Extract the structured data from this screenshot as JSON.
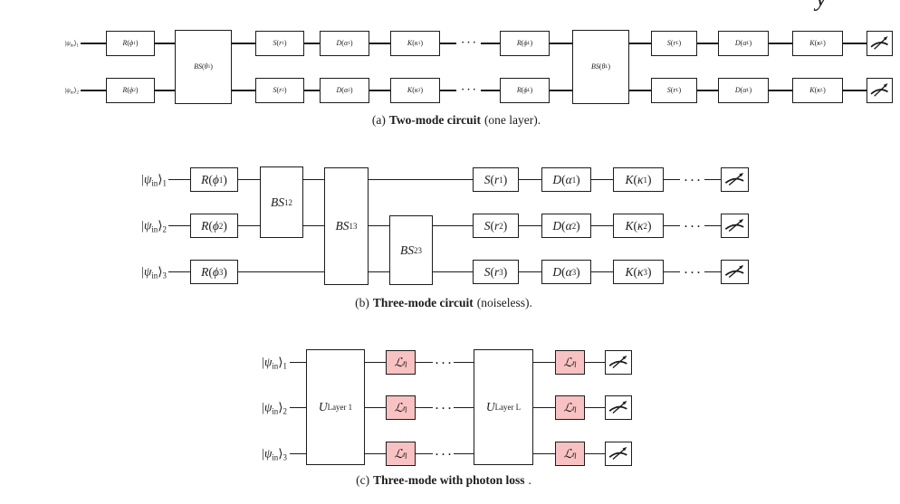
{
  "figure": {
    "corner_fragment": "y",
    "colors": {
      "line": "#1c1c1c",
      "background": "#ffffff",
      "gate_fill": "#ffffff",
      "loss_fill": "#f9c2c2"
    },
    "circuits": [
      {
        "id": "a",
        "caption": {
          "num": "(a)",
          "bold": "Two-mode circuit",
          "rest": "(one layer)."
        },
        "dots": "···",
        "inputs": [
          "|ψ_{in}⟩_{1}",
          "|ψ_{in}⟩_{2}"
        ],
        "elements": [
          {
            "kind": "gate",
            "name": "rotation-gate-phi-1",
            "label": "R(ϕ_{1})"
          },
          {
            "kind": "gate",
            "name": "rotation-gate-phi-2",
            "label": "R(ϕ_{2})"
          },
          {
            "kind": "gate",
            "name": "beamsplitter-gate-theta-1",
            "label": "BS(θ_{1})"
          },
          {
            "kind": "gate",
            "name": "squeezing-gate-r-1",
            "label": "S(r_{1})"
          },
          {
            "kind": "gate",
            "name": "squeezing-gate-r-2",
            "label": "S(r_{2})"
          },
          {
            "kind": "gate",
            "name": "displacement-gate-alpha-1",
            "label": "D(α_{1})"
          },
          {
            "kind": "gate",
            "name": "displacement-gate-alpha-2",
            "label": "D(α_{2})"
          },
          {
            "kind": "gate",
            "name": "kerr-gate-kappa-1",
            "label": "K(κ_{1})"
          },
          {
            "kind": "gate",
            "name": "kerr-gate-kappa-2",
            "label": "K(κ_{2})"
          },
          {
            "kind": "dots",
            "name": "wire-ellipsis-1"
          },
          {
            "kind": "dots",
            "name": "wire-ellipsis-2"
          },
          {
            "kind": "gate",
            "name": "rotation-gate-phi-L-wire-1",
            "label": "R(ϕ_{L})"
          },
          {
            "kind": "gate",
            "name": "rotation-gate-phi-L-wire-2",
            "label": "R(ϕ_{L})"
          },
          {
            "kind": "gate",
            "name": "beamsplitter-gate-theta-L",
            "label": "BS(θ_{L})"
          },
          {
            "kind": "gate",
            "name": "squeezing-gate-r-L-wire-1",
            "label": "S(r_{L})"
          },
          {
            "kind": "gate",
            "name": "squeezing-gate-r-L-wire-2",
            "label": "S(r_{L})"
          },
          {
            "kind": "gate",
            "name": "displacement-gate-alpha-L-wire-1",
            "label": "D(α_{L})"
          },
          {
            "kind": "gate",
            "name": "displacement-gate-alpha-L-wire-2",
            "label": "D(α_{L})"
          },
          {
            "kind": "gate",
            "name": "kerr-gate-kappa-L-wire-1",
            "label": "K(κ_{L})"
          },
          {
            "kind": "gate",
            "name": "kerr-gate-kappa-L-wire-2",
            "label": "K(κ_{L})"
          },
          {
            "kind": "meter",
            "name": "measurement-meter-wire-1"
          },
          {
            "kind": "meter",
            "name": "measurement-meter-wire-2"
          }
        ]
      },
      {
        "id": "b",
        "caption": {
          "num": "(b)",
          "bold": "Three-mode circuit",
          "rest": "(noiseless)."
        },
        "dots": "···",
        "inputs": [
          "|ψ_{in}⟩_{1}",
          "|ψ_{in}⟩_{2}",
          "|ψ_{in}⟩_{3}"
        ],
        "elements": [
          {
            "kind": "gate",
            "name": "rotation-gate-phi-1",
            "label": "R(ϕ_{1})"
          },
          {
            "kind": "gate",
            "name": "rotation-gate-phi-2",
            "label": "R(ϕ_{2})"
          },
          {
            "kind": "gate",
            "name": "rotation-gate-phi-3",
            "label": "R(ϕ_{3})"
          },
          {
            "kind": "gate",
            "name": "beamsplitter-gate-12",
            "label": "BS_{12}"
          },
          {
            "kind": "gate",
            "name": "beamsplitter-gate-13",
            "label": "BS_{13}"
          },
          {
            "kind": "gate",
            "name": "beamsplitter-gate-23",
            "label": "BS_{23}"
          },
          {
            "kind": "gate",
            "name": "squeezing-gate-r-1",
            "label": "S(r_{1})"
          },
          {
            "kind": "gate",
            "name": "squeezing-gate-r-2",
            "label": "S(r_{2})"
          },
          {
            "kind": "gate",
            "name": "squeezing-gate-r-3",
            "label": "S(r_{3})"
          },
          {
            "kind": "gate",
            "name": "displacement-gate-alpha-1",
            "label": "D(α_{1})"
          },
          {
            "kind": "gate",
            "name": "displacement-gate-alpha-2",
            "label": "D(α_{2})"
          },
          {
            "kind": "gate",
            "name": "displacement-gate-alpha-3",
            "label": "D(α_{3})"
          },
          {
            "kind": "gate",
            "name": "kerr-gate-kappa-1",
            "label": "K(κ_{1})"
          },
          {
            "kind": "gate",
            "name": "kerr-gate-kappa-2",
            "label": "K(κ_{2})"
          },
          {
            "kind": "gate",
            "name": "kerr-gate-kappa-3",
            "label": "K(κ_{3})"
          },
          {
            "kind": "dots",
            "name": "wire-ellipsis-1"
          },
          {
            "kind": "dots",
            "name": "wire-ellipsis-2"
          },
          {
            "kind": "dots",
            "name": "wire-ellipsis-3"
          },
          {
            "kind": "meter",
            "name": "measurement-meter-wire-1"
          },
          {
            "kind": "meter",
            "name": "measurement-meter-wire-2"
          },
          {
            "kind": "meter",
            "name": "measurement-meter-wire-3"
          }
        ]
      },
      {
        "id": "c",
        "caption": {
          "num": "(c)",
          "bold": "Three-mode with photon loss",
          "rest": "."
        },
        "dots": "···",
        "inputs": [
          "|ψ_{in}⟩_{1}",
          "|ψ_{in}⟩_{2}",
          "|ψ_{in}⟩_{3}"
        ],
        "elements": [
          {
            "kind": "gate",
            "name": "unitary-layer-1",
            "label": "U_{Layer 1}"
          },
          {
            "kind": "loss",
            "name": "loss-gate-eta-wire-1",
            "label": "ℒ_{η}"
          },
          {
            "kind": "loss",
            "name": "loss-gate-eta-wire-2",
            "label": "ℒ_{η}"
          },
          {
            "kind": "loss",
            "name": "loss-gate-eta-wire-3",
            "label": "ℒ_{η}"
          },
          {
            "kind": "dots",
            "name": "wire-ellipsis-1"
          },
          {
            "kind": "dots",
            "name": "wire-ellipsis-2"
          },
          {
            "kind": "dots",
            "name": "wire-ellipsis-3"
          },
          {
            "kind": "gate",
            "name": "unitary-layer-L",
            "label": "U_{Layer L}"
          },
          {
            "kind": "loss",
            "name": "loss-gate-eta-L-wire-1",
            "label": "ℒ_{η}"
          },
          {
            "kind": "loss",
            "name": "loss-gate-eta-L-wire-2",
            "label": "ℒ_{η}"
          },
          {
            "kind": "loss",
            "name": "loss-gate-eta-L-wire-3",
            "label": "ℒ_{η}"
          },
          {
            "kind": "meter",
            "name": "measurement-meter-wire-1"
          },
          {
            "kind": "meter",
            "name": "measurement-meter-wire-2"
          },
          {
            "kind": "meter",
            "name": "measurement-meter-wire-3"
          }
        ]
      }
    ]
  }
}
